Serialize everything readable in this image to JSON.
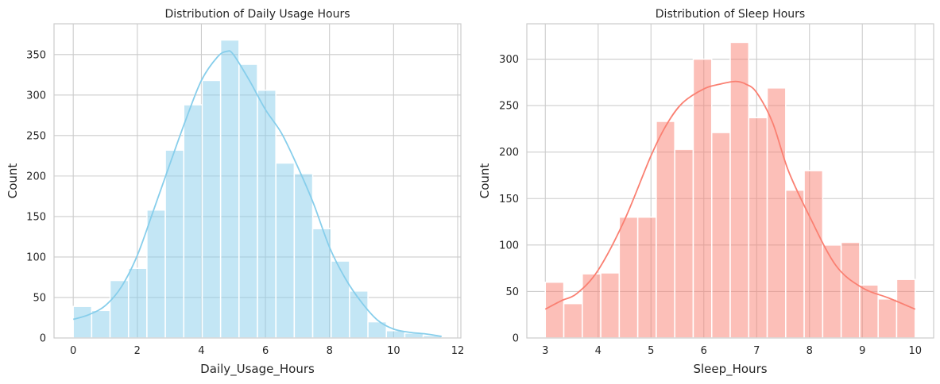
{
  "chart_data": [
    {
      "type": "histogram",
      "title": "Distribution of Daily Usage Hours",
      "xlabel": "Daily_Usage_Hours",
      "ylabel": "Count",
      "xlim": [
        -0.6,
        12.1
      ],
      "ylim": [
        0,
        388
      ],
      "xticks": [
        0,
        2,
        4,
        6,
        8,
        10,
        12
      ],
      "yticks": [
        0,
        50,
        100,
        150,
        200,
        250,
        300,
        350
      ],
      "bin_width": 0.575,
      "bin_start": 0,
      "counts": [
        39,
        34,
        71,
        86,
        158,
        232,
        288,
        318,
        368,
        338,
        306,
        216,
        203,
        135,
        95,
        58,
        20,
        9,
        6,
        3
      ],
      "kde": {
        "x": [
          0,
          0.5,
          1.0,
          1.5,
          2.0,
          2.5,
          3.0,
          3.5,
          4.0,
          4.5,
          4.8,
          5.0,
          5.5,
          6.0,
          6.5,
          7.0,
          7.5,
          8.0,
          8.5,
          9.0,
          9.5,
          10.0,
          10.5,
          11.0,
          11.5
        ],
        "y": [
          23,
          29,
          40,
          63,
          102,
          157,
          213,
          268,
          318,
          347,
          354,
          350,
          318,
          282,
          253,
          212,
          166,
          112,
          73,
          44,
          22,
          11,
          7,
          5,
          2
        ]
      },
      "color": "#87ceeb",
      "grid": true
    },
    {
      "type": "histogram",
      "title": "Distribution of Sleep Hours",
      "xlabel": "Sleep_Hours",
      "ylabel": "Count",
      "xlim": [
        2.65,
        10.35
      ],
      "ylim": [
        0,
        338
      ],
      "xticks": [
        3,
        4,
        5,
        6,
        7,
        8,
        9,
        10
      ],
      "yticks": [
        0,
        50,
        100,
        150,
        200,
        250,
        300
      ],
      "bin_width": 0.35,
      "bin_start": 3,
      "counts": [
        60,
        37,
        69,
        70,
        130,
        130,
        233,
        203,
        300,
        221,
        318,
        237,
        269,
        159,
        180,
        100,
        103,
        57,
        42,
        63
      ],
      "kde": {
        "x": [
          3.0,
          3.3,
          3.6,
          4.0,
          4.5,
          5.0,
          5.3,
          5.6,
          6.0,
          6.3,
          6.6,
          6.8,
          7.0,
          7.3,
          7.6,
          8.0,
          8.5,
          9.0,
          9.5,
          10.0
        ],
        "y": [
          31,
          40,
          48,
          73,
          127,
          196,
          230,
          253,
          268,
          273,
          276,
          273,
          264,
          232,
          180,
          131,
          78,
          54,
          43,
          31
        ]
      },
      "color": "#fa8072",
      "grid": true
    }
  ]
}
